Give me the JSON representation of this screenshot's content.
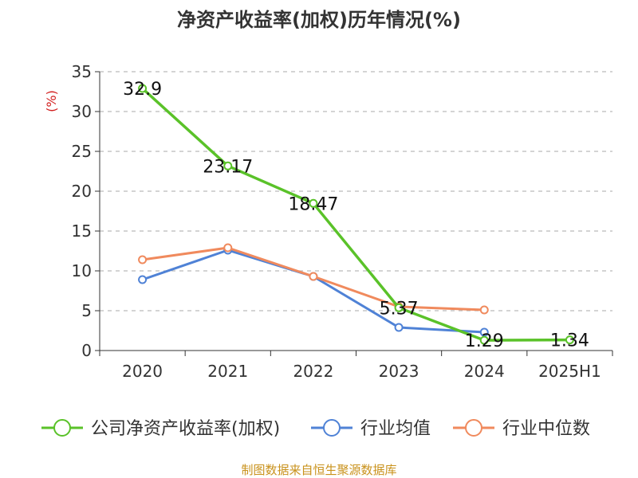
{
  "chart_data": {
    "type": "line",
    "title": "净资产收益率(加权)历年情况(%)",
    "ylabel": "(%)",
    "xlabel": "",
    "categories": [
      "2020",
      "2021",
      "2022",
      "2023",
      "2024",
      "2025H1"
    ],
    "ylim": [
      0,
      35
    ],
    "yticks": [
      0,
      5,
      10,
      15,
      20,
      25,
      30,
      35
    ],
    "grid": true,
    "legend_position": "bottom",
    "series": [
      {
        "name": "公司净资产收益率(加权)",
        "color": "#5ac229",
        "values": [
          32.9,
          23.17,
          18.47,
          5.37,
          1.29,
          1.34
        ],
        "labels": [
          "32.9",
          "23.17",
          "18.47",
          "5.37",
          "1.29",
          "1.34"
        ]
      },
      {
        "name": "行业均值",
        "color": "#4f82d6",
        "values": [
          8.9,
          12.6,
          9.3,
          2.9,
          2.3,
          null
        ]
      },
      {
        "name": "行业中位数",
        "color": "#f08a5d",
        "values": [
          11.4,
          12.9,
          9.3,
          5.5,
          5.1,
          null
        ]
      }
    ],
    "source": "制图数据来自恒生聚源数据库"
  }
}
